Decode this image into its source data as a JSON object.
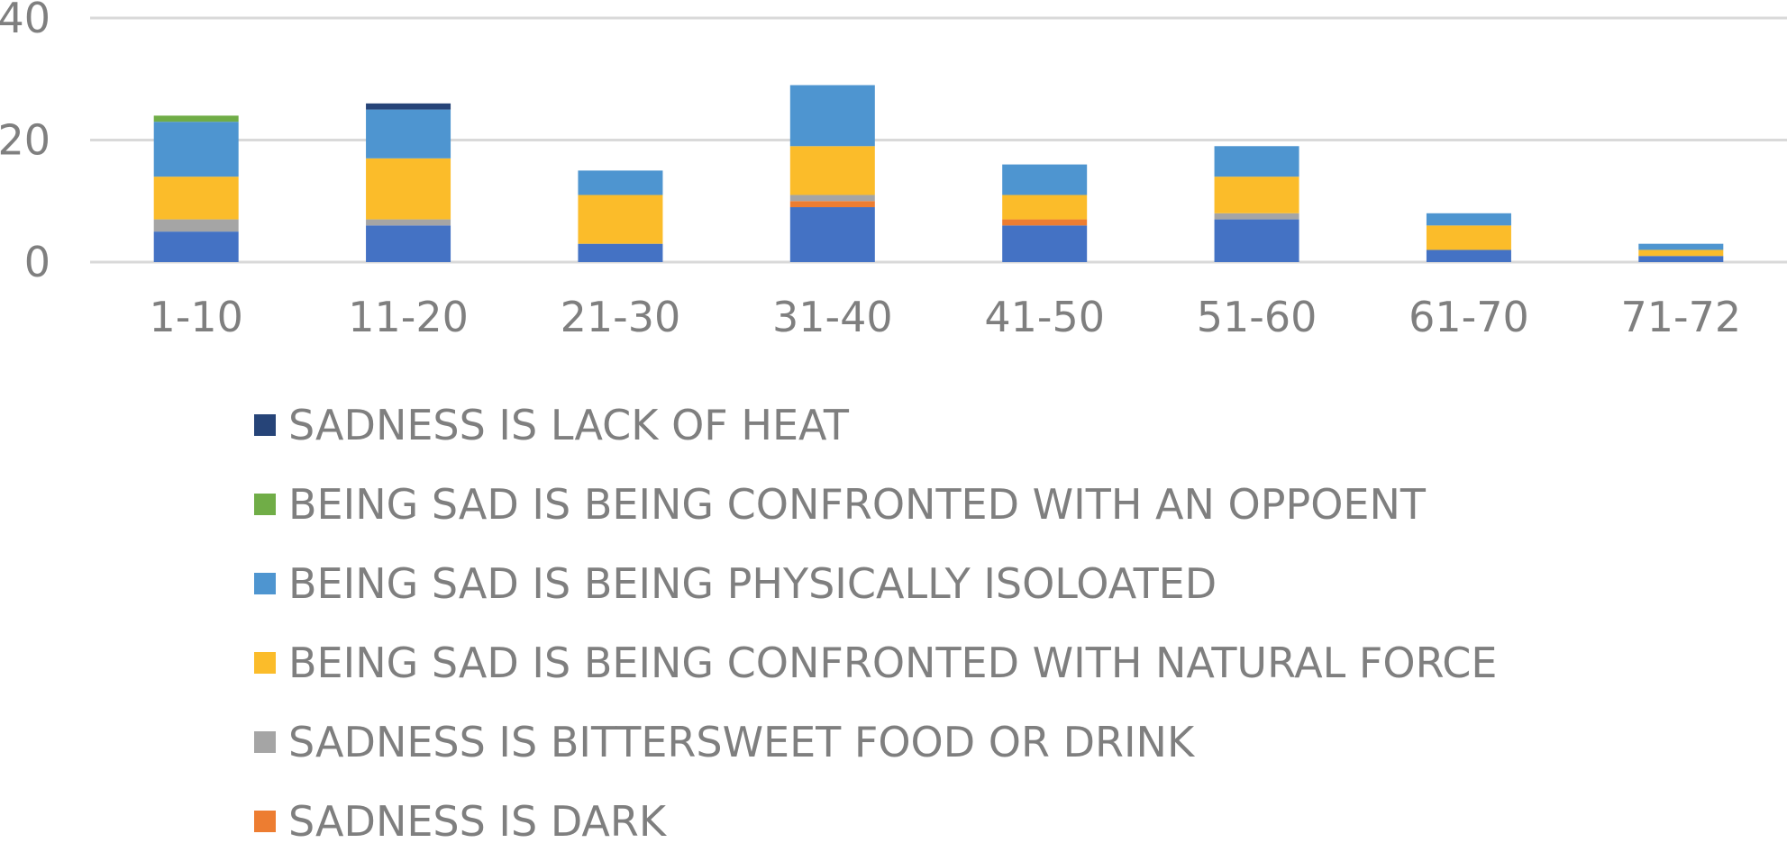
{
  "chart_data": {
    "type": "bar",
    "stacked": true,
    "categories": [
      "1-10",
      "11-20",
      "21-30",
      "31-40",
      "41-50",
      "51-60",
      "61-70",
      "71-72"
    ],
    "yticks": [
      "0",
      "20",
      "40"
    ],
    "ylim": [
      0,
      40
    ],
    "grid": true,
    "legend_position": "bottom",
    "series": [
      {
        "name": "SADNESS IS DARK",
        "color": "#ed7d31",
        "values": [
          0,
          0,
          0,
          1,
          1,
          0,
          0,
          0
        ]
      },
      {
        "name": "SADNESS IS BITTERSWEET FOOD OR DRINK",
        "color": "#a5a5a5",
        "values": [
          2,
          1,
          0,
          1,
          0,
          1,
          0,
          0
        ]
      },
      {
        "name": "BEING SAD IS BEING CONFRONTED WITH NATURAL FORCE",
        "color": "#fbbc2a",
        "values": [
          7,
          10,
          8,
          8,
          4,
          6,
          4,
          1
        ]
      },
      {
        "name": "BEING SAD IS BEING PHYSICALLY ISOLOATED",
        "color": "#4e95d0",
        "values": [
          9,
          8,
          4,
          10,
          5,
          5,
          2,
          1
        ]
      },
      {
        "name": "BEING SAD IS BEING CONFRONTED WITH AN OPPOENT",
        "color": "#70ad47",
        "values": [
          1,
          0,
          0,
          0,
          0,
          0,
          0,
          0
        ]
      },
      {
        "name": "SADNESS IS LACK OF HEAT",
        "color": "#264478",
        "values": [
          0,
          1,
          0,
          0,
          0,
          0,
          0,
          0
        ]
      }
    ],
    "base_series": {
      "color": "#4472c4",
      "values": [
        5,
        6,
        3,
        9,
        6,
        7,
        2,
        1
      ]
    }
  },
  "legend_items": [
    {
      "label": "SADNESS IS LACK OF HEAT",
      "color": "#264478"
    },
    {
      "label": "BEING SAD IS BEING CONFRONTED WITH AN OPPOENT",
      "color": "#70ad47"
    },
    {
      "label": "BEING SAD IS BEING PHYSICALLY ISOLOATED",
      "color": "#4e95d0"
    },
    {
      "label": "BEING SAD IS BEING CONFRONTED WITH NATURAL FORCE",
      "color": "#fbbc2a"
    },
    {
      "label": "SADNESS IS BITTERSWEET FOOD OR DRINK",
      "color": "#a5a5a5"
    },
    {
      "label": "SADNESS IS DARK",
      "color": "#ed7d31"
    }
  ]
}
